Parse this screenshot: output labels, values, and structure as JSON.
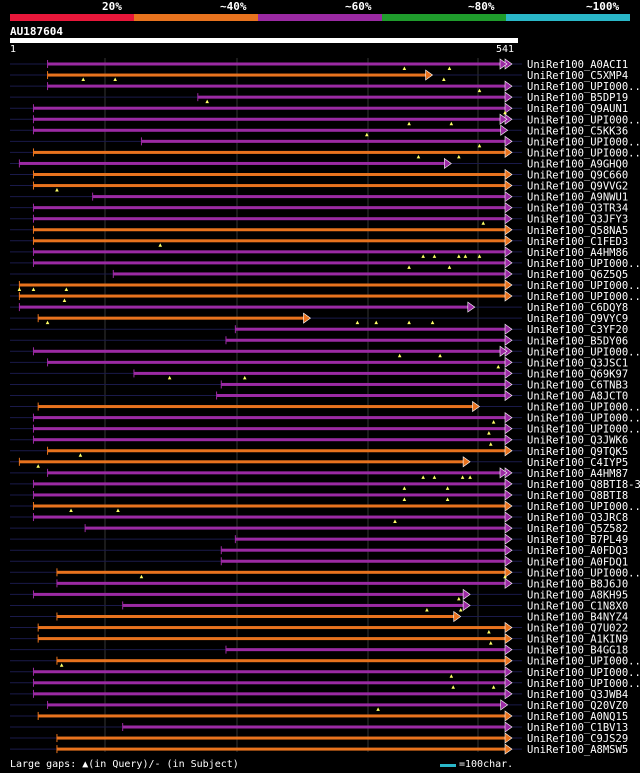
{
  "legend": {
    "items": [
      {
        "label": "20%",
        "color": "#e8173a"
      },
      {
        "label": "~40%",
        "color": "#e8731e"
      },
      {
        "label": "~60%",
        "color": "#9b2aa3"
      },
      {
        "label": "~80%",
        "color": "#1f9c2c"
      },
      {
        "label": "~100%",
        "color": "#2ab7c8"
      }
    ]
  },
  "query": {
    "name": "AU187604",
    "start": "1",
    "end": "541"
  },
  "colors": {
    "orange": "#e8731e",
    "purple": "#9b2aa3",
    "dark": "#1a1a4a",
    "grid": "#333333",
    "gap": "#ffff66"
  },
  "hits": [
    {
      "name": "UniRef100_A0ACI1",
      "color": "purple",
      "s": 40,
      "e": 540,
      "arrow": "dbl",
      "gaps": [
        420,
        468
      ]
    },
    {
      "name": "UniRef100_C5XMP4",
      "color": "orange",
      "s": 40,
      "e": 450,
      "gaps": [
        78,
        112,
        462
      ]
    },
    {
      "name": "UniRef100_UPI000..",
      "color": "purple",
      "s": 40,
      "e": 540,
      "gaps": [
        500
      ]
    },
    {
      "name": "UniRef100_B5DP19",
      "color": "purple",
      "s": 200,
      "e": 571,
      "gaps": [
        210
      ]
    },
    {
      "name": "UniRef100_Q9AUN1",
      "color": "purple",
      "s": 25,
      "e": 540,
      "gaps": [
        530
      ]
    },
    {
      "name": "UniRef100_UPI000..",
      "color": "purple",
      "s": 25,
      "e": 540,
      "arrow": "dbl",
      "gaps": [
        425,
        470
      ]
    },
    {
      "name": "UniRef100_C5KK36",
      "color": "purple",
      "s": 25,
      "e": 530,
      "gaps": [
        380
      ]
    },
    {
      "name": "UniRef100_UPI000..",
      "color": "purple",
      "s": 140,
      "e": 540,
      "gaps": [
        500
      ]
    },
    {
      "name": "UniRef100_UPI000..",
      "color": "orange",
      "s": 25,
      "e": 540,
      "gaps": [
        435,
        478
      ]
    },
    {
      "name": "UniRef100_A9GHQ0",
      "color": "purple",
      "s": 10,
      "e": 470,
      "gaps": []
    },
    {
      "name": "UniRef100_Q9C660",
      "color": "orange",
      "s": 25,
      "e": 540,
      "gaps": []
    },
    {
      "name": "UniRef100_Q9VVG2",
      "color": "orange",
      "s": 25,
      "e": 540,
      "gaps": [
        50
      ]
    },
    {
      "name": "UniRef100_A9NWU1",
      "color": "purple",
      "s": 88,
      "e": 550,
      "gaps": []
    },
    {
      "name": "UniRef100_Q3TR34",
      "color": "purple",
      "s": 25,
      "e": 540,
      "gaps": []
    },
    {
      "name": "UniRef100_Q3JFY3",
      "color": "purple",
      "s": 25,
      "e": 540,
      "gaps": [
        504
      ]
    },
    {
      "name": "UniRef100_Q58NA5",
      "color": "orange",
      "s": 25,
      "e": 560,
      "gaps": []
    },
    {
      "name": "UniRef100_C1FED3",
      "color": "orange",
      "s": 25,
      "e": 560,
      "gaps": [
        160
      ]
    },
    {
      "name": "UniRef100_A4HM86",
      "color": "purple",
      "s": 25,
      "e": 560,
      "gaps": [
        440,
        452,
        478,
        485,
        500
      ]
    },
    {
      "name": "UniRef100_UPI000..",
      "color": "purple",
      "s": 25,
      "e": 540,
      "gaps": [
        425,
        468
      ]
    },
    {
      "name": "UniRef100_Q6Z5Q5",
      "color": "purple",
      "s": 110,
      "e": 540,
      "gaps": []
    },
    {
      "name": "UniRef100_UPI000..",
      "color": "orange",
      "s": 10,
      "e": 540,
      "gaps": [
        10,
        25,
        60
      ]
    },
    {
      "name": "UniRef100_UPI000..",
      "color": "orange",
      "s": 10,
      "e": 540,
      "gaps": [
        58
      ]
    },
    {
      "name": "UniRef100_C6DQY8",
      "color": "purple",
      "s": 10,
      "e": 495,
      "gaps": []
    },
    {
      "name": "UniRef100_Q9VYC9",
      "color": "orange",
      "s": 30,
      "e": 320,
      "gaps": [
        40,
        370,
        390,
        425,
        450
      ]
    },
    {
      "name": "UniRef100_C3YF20",
      "color": "purple",
      "s": 240,
      "e": 560,
      "gaps": []
    },
    {
      "name": "UniRef100_B5DY06",
      "color": "purple",
      "s": 230,
      "e": 540,
      "gaps": []
    },
    {
      "name": "UniRef100_UPI000..",
      "color": "purple",
      "s": 25,
      "e": 548,
      "arrow": "dbl",
      "gaps": [
        415,
        458
      ]
    },
    {
      "name": "UniRef100_Q3JSC1",
      "color": "purple",
      "s": 40,
      "e": 560,
      "gaps": [
        520
      ]
    },
    {
      "name": "UniRef100_Q69K97",
      "color": "purple",
      "s": 132,
      "e": 560,
      "gaps": [
        170,
        250
      ]
    },
    {
      "name": "UniRef100_C6TNB3",
      "color": "purple",
      "s": 225,
      "e": 560,
      "gaps": []
    },
    {
      "name": "UniRef100_A8JCT0",
      "color": "purple",
      "s": 220,
      "e": 560,
      "gaps": []
    },
    {
      "name": "UniRef100_UPI000..",
      "color": "orange",
      "s": 30,
      "e": 500,
      "gaps": []
    },
    {
      "name": "UniRef100_UPI000..",
      "color": "purple",
      "s": 25,
      "e": 540,
      "gaps": [
        515
      ]
    },
    {
      "name": "UniRef100_UPI000..",
      "color": "purple",
      "s": 25,
      "e": 540,
      "gaps": [
        510
      ]
    },
    {
      "name": "UniRef100_Q3JWK6",
      "color": "purple",
      "s": 25,
      "e": 540,
      "gaps": [
        512
      ]
    },
    {
      "name": "UniRef100_Q9TQK5",
      "color": "orange",
      "s": 40,
      "e": 540,
      "gaps": [
        75
      ]
    },
    {
      "name": "UniRef100_C4IYP5",
      "color": "orange",
      "s": 10,
      "e": 490,
      "gaps": [
        30
      ]
    },
    {
      "name": "UniRef100_A4HM87",
      "color": "purple",
      "s": 40,
      "e": 548,
      "arrow": "dbl",
      "gaps": [
        440,
        452,
        482,
        490
      ]
    },
    {
      "name": "UniRef100_Q8BTI8-3",
      "color": "purple",
      "s": 25,
      "e": 540,
      "gaps": [
        420,
        466
      ]
    },
    {
      "name": "UniRef100_Q8BTI8",
      "color": "purple",
      "s": 25,
      "e": 540,
      "gaps": [
        420,
        466
      ]
    },
    {
      "name": "UniRef100_UPI000..",
      "color": "orange",
      "s": 25,
      "e": 540,
      "gaps": [
        65,
        115
      ]
    },
    {
      "name": "UniRef100_Q3JRC8",
      "color": "purple",
      "s": 25,
      "e": 540,
      "gaps": [
        410
      ]
    },
    {
      "name": "UniRef100_Q5Z582",
      "color": "purple",
      "s": 80,
      "e": 540,
      "gaps": []
    },
    {
      "name": "UniRef100_B7PL49",
      "color": "purple",
      "s": 240,
      "e": 560,
      "gaps": []
    },
    {
      "name": "UniRef100_A0FDQ3",
      "color": "purple",
      "s": 225,
      "e": 560,
      "gaps": []
    },
    {
      "name": "UniRef100_A0FDQ1",
      "color": "purple",
      "s": 225,
      "e": 560,
      "gaps": []
    },
    {
      "name": "UniRef100_UPI000..",
      "color": "orange",
      "s": 50,
      "e": 550,
      "gaps": [
        140,
        550
      ]
    },
    {
      "name": "UniRef100_B8J6J0",
      "color": "purple",
      "s": 50,
      "e": 540,
      "gaps": []
    },
    {
      "name": "UniRef100_A8KH95",
      "color": "purple",
      "s": 25,
      "e": 490,
      "gaps": [
        478
      ]
    },
    {
      "name": "UniRef100_C1N8X0",
      "color": "purple",
      "s": 120,
      "e": 490,
      "gaps": [
        444,
        480
      ]
    },
    {
      "name": "UniRef100_B4NYZ4",
      "color": "orange",
      "s": 50,
      "e": 480,
      "gaps": []
    },
    {
      "name": "UniRef100_Q7U022",
      "color": "orange",
      "s": 30,
      "e": 560,
      "gaps": [
        510
      ]
    },
    {
      "name": "UniRef100_A1KIN9",
      "color": "orange",
      "s": 30,
      "e": 560,
      "gaps": [
        512
      ]
    },
    {
      "name": "UniRef100_B4GG18",
      "color": "purple",
      "s": 230,
      "e": 570,
      "gaps": []
    },
    {
      "name": "UniRef100_UPI000..",
      "color": "orange",
      "s": 50,
      "e": 570,
      "gaps": [
        55
      ]
    },
    {
      "name": "UniRef100_UPI000..",
      "color": "purple",
      "s": 25,
      "e": 540,
      "gaps": [
        470
      ]
    },
    {
      "name": "UniRef100_UPI000..",
      "color": "purple",
      "s": 25,
      "e": 540,
      "gaps": [
        472,
        515
      ]
    },
    {
      "name": "UniRef100_Q3JWB4",
      "color": "purple",
      "s": 25,
      "e": 560,
      "gaps": []
    },
    {
      "name": "UniRef100_Q20VZ0",
      "color": "purple",
      "s": 40,
      "e": 530,
      "gaps": [
        392
      ]
    },
    {
      "name": "UniRef100_A0NQ15",
      "color": "orange",
      "s": 30,
      "e": 560,
      "gaps": []
    },
    {
      "name": "UniRef100_C1BV13",
      "color": "purple",
      "s": 120,
      "e": 540,
      "gaps": []
    },
    {
      "name": "UniRef100_C9JS29",
      "color": "orange",
      "s": 50,
      "e": 540,
      "gaps": []
    },
    {
      "name": "UniRef100_A8MSW5",
      "color": "orange",
      "s": 50,
      "e": 540,
      "gaps": []
    }
  ],
  "footer": {
    "gaps_text": "Large gaps: ▲(in Query)/- (in Subject)",
    "scale_text": "=100char."
  }
}
